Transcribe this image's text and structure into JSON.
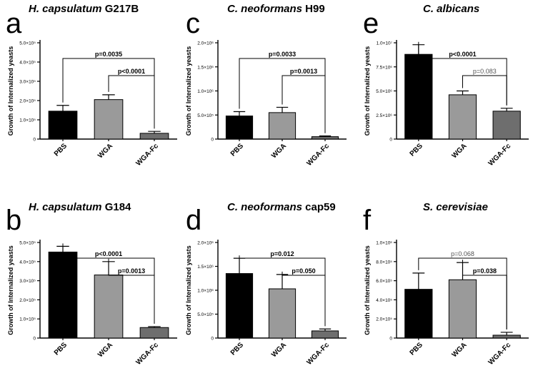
{
  "figure": {
    "colors": {
      "PBS": "#000000",
      "WGA": "#9a9a9a",
      "WGA-Fc": "#6e6e6e",
      "axis": "#000000"
    }
  },
  "chart_data": [
    {
      "panel": "a",
      "type": "bar",
      "title_italic": "H. capsulatum",
      "title_rest": " G217B",
      "ylabel": "Growth of Internalized yeasts",
      "categories": [
        "PBS",
        "WGA",
        "WGA-Fc"
      ],
      "values": [
        145000,
        205000,
        30000
      ],
      "errors": [
        30000,
        25000,
        10000
      ],
      "ylim": [
        0,
        500000
      ],
      "yticks": [
        0,
        100000,
        200000,
        300000,
        400000,
        500000
      ],
      "ytick_labels": [
        "0",
        "1.0×10⁵",
        "2.0×10⁵",
        "3.0×10⁵",
        "4.0×10⁵",
        "5.0×10⁵"
      ],
      "comparisons": [
        {
          "from": 0,
          "to": 2,
          "label": "p=0.0035",
          "bold": true
        },
        {
          "from": 1,
          "to": 2,
          "label": "p<0.0001",
          "bold": true
        }
      ]
    },
    {
      "panel": "c",
      "type": "bar",
      "title_italic": "C. neoformans",
      "title_rest": " H99",
      "ylabel": "Growth of Internalized yeasts",
      "categories": [
        "PBS",
        "WGA",
        "WGA-Fc"
      ],
      "values": [
        480000,
        550000,
        50000
      ],
      "errors": [
        90000,
        110000,
        15000
      ],
      "ylim": [
        0,
        2000000
      ],
      "yticks": [
        0,
        500000,
        1000000,
        1500000,
        2000000
      ],
      "ytick_labels": [
        "0",
        "5.0×10⁵",
        "1.0×10⁶",
        "1.5×10⁶",
        "2.0×10⁶"
      ],
      "comparisons": [
        {
          "from": 0,
          "to": 2,
          "label": "p=0.0033",
          "bold": true
        },
        {
          "from": 1,
          "to": 2,
          "label": "p=0.0013",
          "bold": true
        }
      ]
    },
    {
      "panel": "e",
      "type": "bar",
      "title_italic": "C. albicans",
      "title_rest": "",
      "ylabel": "Growth of Internalized yeasts",
      "categories": [
        "PBS",
        "WGA",
        "WGA-Fc"
      ],
      "values": [
        8800000,
        4600000,
        2900000
      ],
      "errors": [
        1000000,
        400000,
        300000
      ],
      "ylim": [
        0,
        10000000
      ],
      "yticks": [
        0,
        2500000,
        5000000,
        7500000,
        10000000
      ],
      "ytick_labels": [
        "0",
        "2.5×10⁶",
        "5.0×10⁶",
        "7.5×10⁶",
        "1.0×10⁷"
      ],
      "comparisons": [
        {
          "from": 0,
          "to": 2,
          "label": "p<0.0001",
          "bold": true
        },
        {
          "from": 1,
          "to": 2,
          "label": "p=0.083",
          "bold": false
        }
      ]
    },
    {
      "panel": "b",
      "type": "bar",
      "title_italic": "H. capsulatum",
      "title_rest": " G184",
      "ylabel": "Growth of Internalized yeasts",
      "categories": [
        "PBS",
        "WGA",
        "WGA-Fc"
      ],
      "values": [
        450000,
        330000,
        55000
      ],
      "errors": [
        30000,
        70000,
        5000
      ],
      "ylim": [
        0,
        500000
      ],
      "yticks": [
        0,
        100000,
        200000,
        300000,
        400000,
        500000
      ],
      "ytick_labels": [
        "0",
        "1.0×10⁵",
        "2.0×10⁵",
        "3.0×10⁵",
        "4.0×10⁵",
        "5.0×10⁵"
      ],
      "comparisons": [
        {
          "from": 0,
          "to": 2,
          "label": "p<0.0001",
          "bold": true
        },
        {
          "from": 1,
          "to": 2,
          "label": "p=0.0013",
          "bold": true
        }
      ]
    },
    {
      "panel": "d",
      "type": "bar",
      "title_italic": "C. neoformans",
      "title_rest": " cap59",
      "ylabel": "Growth of Internalized yeasts",
      "categories": [
        "PBS",
        "WGA",
        "WGA-Fc"
      ],
      "values": [
        1350000,
        1030000,
        150000
      ],
      "errors": [
        320000,
        300000,
        40000
      ],
      "ylim": [
        0,
        2000000
      ],
      "yticks": [
        0,
        500000,
        1000000,
        1500000,
        2000000
      ],
      "ytick_labels": [
        "0",
        "5.0×10⁵",
        "1.0×10⁶",
        "1.5×10⁶",
        "2.0×10⁶"
      ],
      "comparisons": [
        {
          "from": 0,
          "to": 2,
          "label": "p=0.012",
          "bold": true
        },
        {
          "from": 1,
          "to": 2,
          "label": "p=0.050",
          "bold": true
        }
      ]
    },
    {
      "panel": "f",
      "type": "bar",
      "title_italic": "S. cerevisiae",
      "title_rest": "",
      "ylabel": "Growth of Internalized yeasts",
      "categories": [
        "PBS",
        "WGA",
        "WGA-Fc"
      ],
      "values": [
        510000,
        610000,
        30000
      ],
      "errors": [
        170000,
        180000,
        30000
      ],
      "ylim": [
        0,
        1000000
      ],
      "yticks": [
        0,
        200000,
        400000,
        600000,
        800000,
        1000000
      ],
      "ytick_labels": [
        "0",
        "2.0×10⁵",
        "4.0×10⁵",
        "6.0×10⁵",
        "8.0×10⁵",
        "1.0×10⁶"
      ],
      "comparisons": [
        {
          "from": 0,
          "to": 2,
          "label": "p=0.068",
          "bold": false
        },
        {
          "from": 1,
          "to": 2,
          "label": "p=0.038",
          "bold": true
        }
      ]
    }
  ]
}
